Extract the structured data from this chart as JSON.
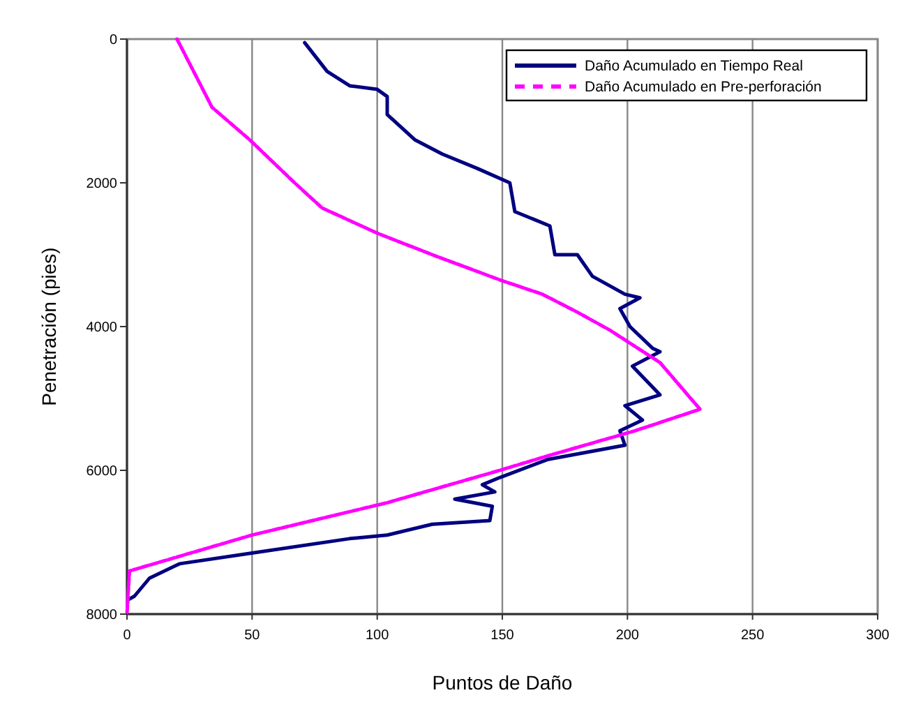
{
  "chart_data": {
    "type": "line",
    "xlabel": "Puntos de Daño",
    "ylabel": "Penetración (pies)",
    "xlim": [
      0,
      300
    ],
    "xticks": [
      0,
      50,
      100,
      150,
      200,
      250,
      300
    ],
    "ylim": [
      8000,
      0
    ],
    "yticks": [
      0,
      2000,
      4000,
      6000,
      8000
    ],
    "grid": "x",
    "legend": "top right",
    "series": [
      {
        "name": "Daño Acumulado en Tiempo Real",
        "color": "#000080",
        "line_style": "solid",
        "x": [
          71,
          80,
          89,
          100,
          104,
          104,
          115,
          126,
          140,
          153,
          155,
          169,
          171,
          180,
          186,
          199,
          205,
          197,
          201,
          210,
          213,
          202,
          213,
          199,
          206,
          197,
          199,
          168,
          149,
          142,
          147,
          131,
          146,
          145,
          122,
          104,
          89,
          50,
          21,
          9,
          3,
          0.5
        ],
        "values": [
          50,
          450,
          650,
          700,
          800,
          1050,
          1400,
          1600,
          1800,
          2000,
          2400,
          2600,
          3000,
          3000,
          3300,
          3550,
          3600,
          3750,
          4000,
          4300,
          4350,
          4550,
          4950,
          5100,
          5300,
          5450,
          5650,
          5850,
          6100,
          6200,
          6300,
          6400,
          6500,
          6700,
          6750,
          6900,
          6950,
          7150,
          7300,
          7500,
          7750,
          7800
        ]
      },
      {
        "name": "Daño Acumulado en Pre-perforación",
        "color": "#ff00ff",
        "line_style": "dashed",
        "x": [
          20,
          34,
          49,
          67,
          78,
          100,
          122,
          149,
          166,
          180,
          193,
          213,
          229,
          203,
          168,
          149,
          104,
          50,
          1,
          0
        ],
        "values": [
          0,
          950,
          1400,
          2000,
          2350,
          2700,
          3000,
          3350,
          3550,
          3800,
          4050,
          4500,
          5150,
          5450,
          5800,
          6000,
          6450,
          6900,
          7400,
          8000
        ]
      }
    ]
  }
}
